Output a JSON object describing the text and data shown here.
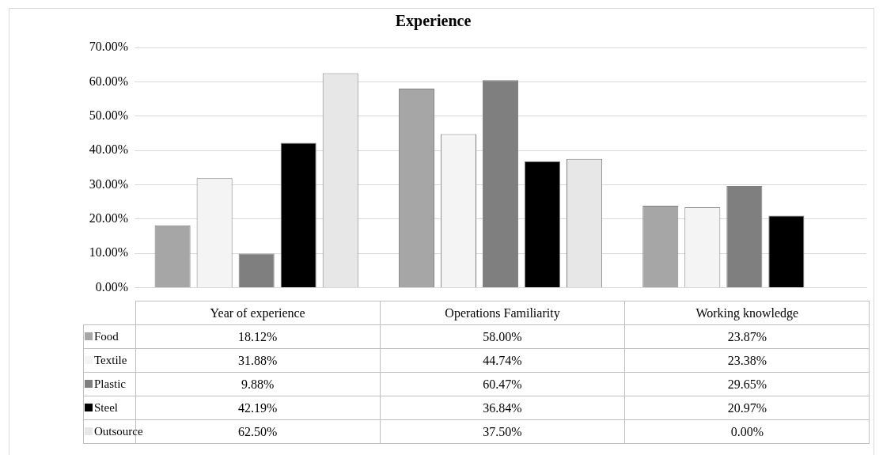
{
  "chart_data": {
    "type": "bar",
    "title": "Experience",
    "categories": [
      "Year of experience",
      "Operations Familiarity",
      "Working knowledge"
    ],
    "series": [
      {
        "name": "Food",
        "color": "#a6a6a6",
        "values": [
          18.12,
          58.0,
          23.87
        ],
        "value_labels": [
          "18.12%",
          "58.00%",
          "23.87%"
        ]
      },
      {
        "name": "Textile",
        "color": "#f4f4f4",
        "values": [
          31.88,
          44.74,
          23.38
        ],
        "value_labels": [
          "31.88%",
          "44.74%",
          "23.38%"
        ]
      },
      {
        "name": "Plastic",
        "color": "#7f7f7f",
        "values": [
          9.88,
          60.47,
          29.65
        ],
        "value_labels": [
          "9.88%",
          "60.47%",
          "29.65%"
        ]
      },
      {
        "name": "Steel",
        "color": "#000000",
        "values": [
          42.19,
          36.84,
          20.97
        ],
        "value_labels": [
          "42.19%",
          "36.84%",
          "20.97%"
        ]
      },
      {
        "name": "Outsource",
        "color": "#e7e7e7",
        "values": [
          62.5,
          37.5,
          0
        ],
        "value_labels": [
          "62.50%",
          "37.50%",
          "0.00%"
        ]
      }
    ],
    "ylim": [
      0,
      70
    ],
    "yticks": [
      {
        "value": 0,
        "label": "0.00%"
      },
      {
        "value": 10,
        "label": "10.00%"
      },
      {
        "value": 20,
        "label": "20.00%"
      },
      {
        "value": 30,
        "label": "30.00%"
      },
      {
        "value": 40,
        "label": "40.00%"
      },
      {
        "value": 50,
        "label": "50.00%"
      },
      {
        "value": 60,
        "label": "60.00%"
      },
      {
        "value": 70,
        "label": "70.00%"
      }
    ],
    "grid": "y",
    "legend": "bottom"
  }
}
